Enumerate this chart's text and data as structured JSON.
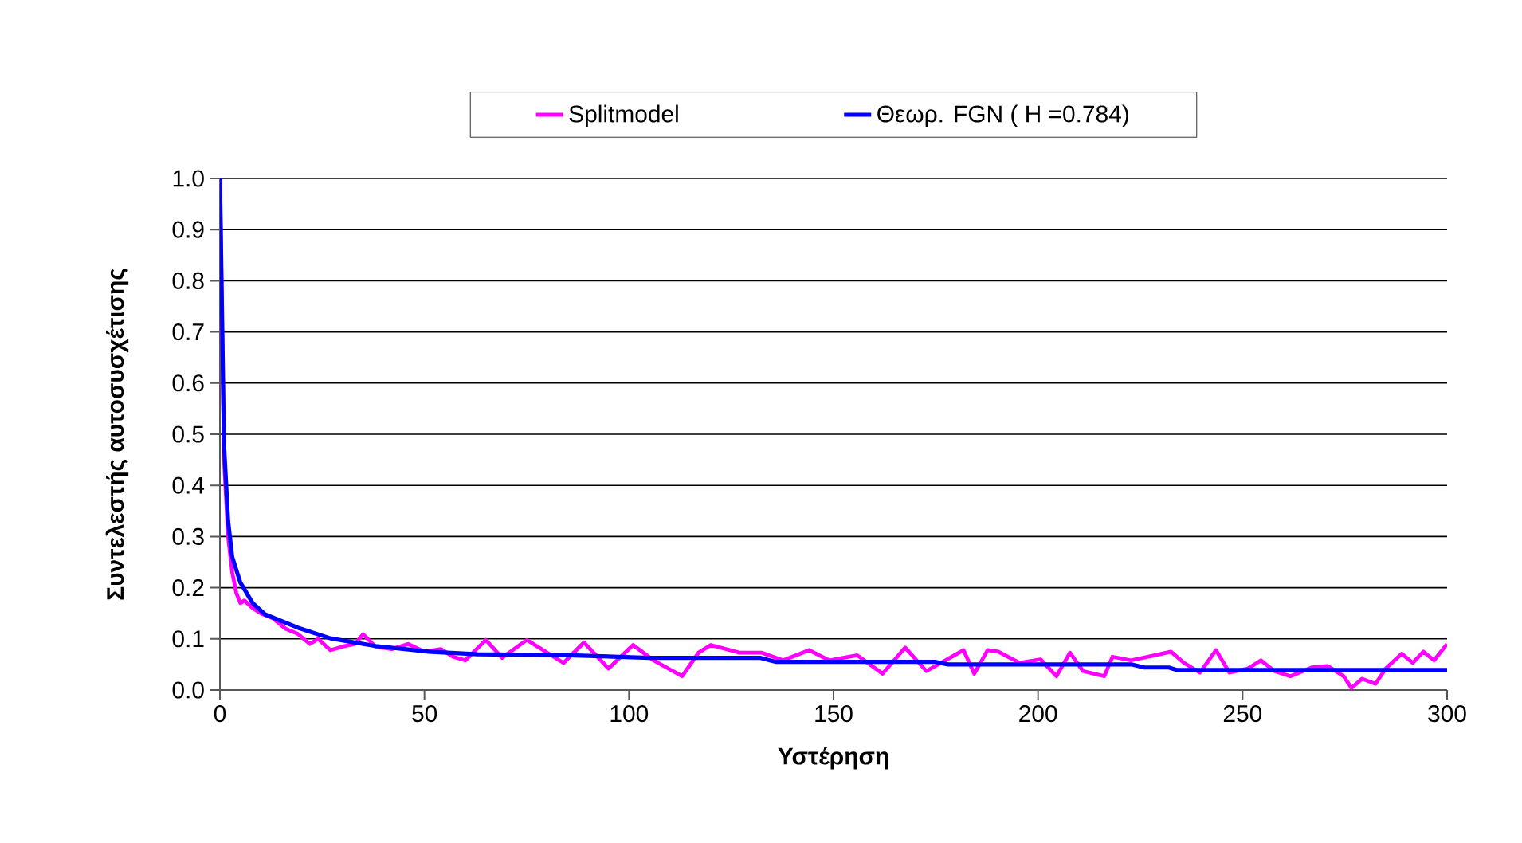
{
  "chart_data": {
    "type": "line",
    "xlabel": "Υστέρηση",
    "ylabel": "Συντελεστής αυτοσυσχέτισης",
    "xlim": [
      0,
      300
    ],
    "xticks": [
      0,
      50,
      100,
      150,
      200,
      250,
      300
    ],
    "ylim": [
      0,
      1
    ],
    "yticks": [
      {
        "value": 0,
        "label": "0.0"
      },
      0.1,
      0.2,
      0.3,
      0.4,
      0.5,
      0.6,
      0.7,
      0.8,
      0.9,
      {
        "value": 1,
        "label": "1.0"
      }
    ],
    "grid": "y",
    "legend": "top",
    "marker": "none",
    "line_style": "solid",
    "series": [
      {
        "name": "Splitmodel",
        "color": "#ff00ff",
        "x": [
          0,
          1,
          2,
          3,
          4,
          5,
          6,
          8,
          10,
          13,
          16,
          19,
          22,
          24,
          27,
          30,
          33,
          35,
          38,
          42,
          46,
          50,
          54,
          57,
          60,
          65,
          69,
          75,
          84,
          89,
          95,
          101,
          106,
          113,
          117,
          120,
          127,
          132.5,
          137.7,
          144,
          149,
          155.8,
          162,
          167.5,
          172.7,
          181.8,
          184.4,
          187.7,
          190.3,
          195.5,
          200.6,
          204.5,
          207.8,
          211,
          216.2,
          218.2,
          222.7,
          228.6,
          232.5,
          235.7,
          239.6,
          243.5,
          246.8,
          251.3,
          254.5,
          257.8,
          261.7,
          266.9,
          270.8,
          274.7,
          276.6,
          279.2,
          282.5,
          285,
          288.9,
          291.6,
          294.2,
          296.8,
          300
        ],
        "values": [
          1,
          0.45,
          0.3,
          0.23,
          0.19,
          0.17,
          0.175,
          0.16,
          0.15,
          0.14,
          0.12,
          0.11,
          0.09,
          0.1,
          0.078,
          0.085,
          0.09,
          0.109,
          0.085,
          0.08,
          0.09,
          0.075,
          0.08,
          0.065,
          0.058,
          0.098,
          0.063,
          0.098,
          0.053,
          0.093,
          0.042,
          0.088,
          0.058,
          0.027,
          0.073,
          0.088,
          0.073,
          0.073,
          0.058,
          0.078,
          0.058,
          0.068,
          0.032,
          0.083,
          0.037,
          0.078,
          0.032,
          0.078,
          0.075,
          0.053,
          0.06,
          0.027,
          0.073,
          0.037,
          0.027,
          0.065,
          0.058,
          0.068,
          0.075,
          0.053,
          0.034,
          0.078,
          0.034,
          0.042,
          0.058,
          0.037,
          0.027,
          0.044,
          0.047,
          0.027,
          0.004,
          0.022,
          0.012,
          0.042,
          0.071,
          0.053,
          0.075,
          0.058,
          0.09
        ]
      },
      {
        "name": "Θεωρ. FGN ( H =0.784)",
        "color": "#0000ff",
        "x": [
          0,
          1,
          2,
          3,
          5,
          8,
          11,
          19,
          27,
          38,
          51,
          63,
          85,
          105,
          132,
          136,
          175,
          178,
          223,
          226,
          232,
          234,
          300
        ],
        "values": [
          1,
          0.48,
          0.33,
          0.26,
          0.21,
          0.17,
          0.148,
          0.122,
          0.101,
          0.086,
          0.075,
          0.07,
          0.068,
          0.063,
          0.063,
          0.055,
          0.055,
          0.05,
          0.05,
          0.044,
          0.044,
          0.039,
          0.039
        ]
      }
    ]
  }
}
